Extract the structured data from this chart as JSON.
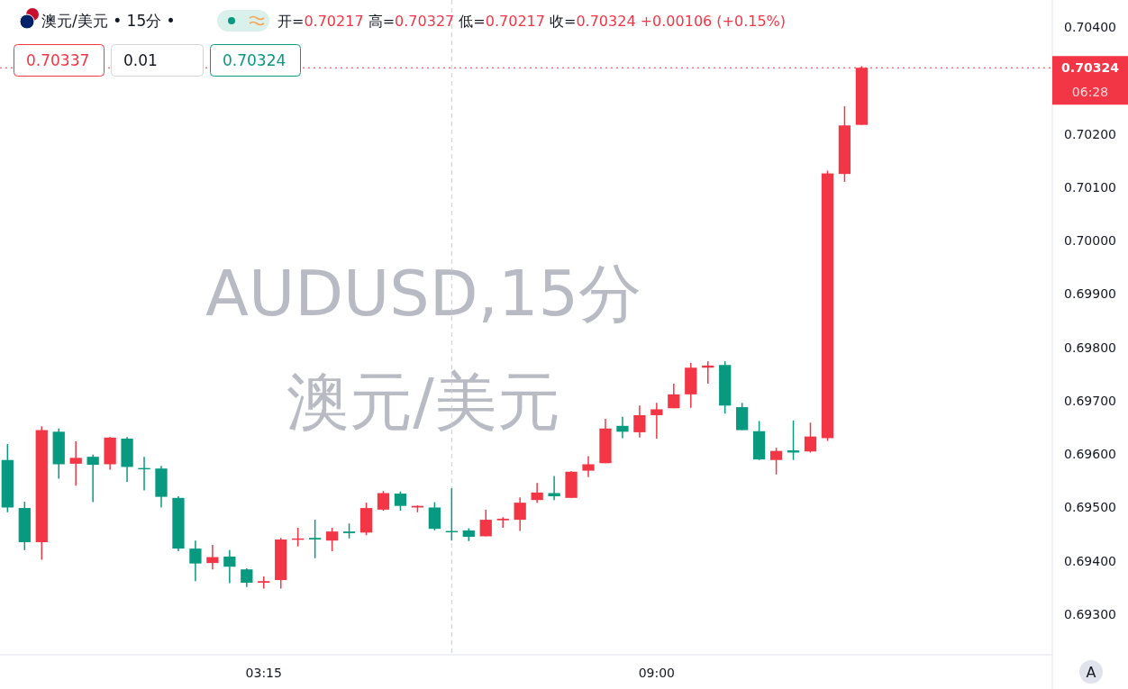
{
  "chart_data": {
    "type": "candlestick",
    "title": "澳元/美元 • 15分 •",
    "subtitle": "开=0.70217 高=0.70327 低=0.70217 收=0.70324 +0.00106 (+0.15%)",
    "annotations": [
      "AUDUSD,15分",
      "澳元/美元",
      "0.70337",
      "0.01",
      "0.70324",
      "06:28",
      "A"
    ],
    "x": [
      -0.5,
      -0.25,
      0,
      0.25,
      0.5,
      0.75,
      1,
      1.25,
      1.5,
      1.75,
      2,
      2.25,
      2.5,
      2.75,
      3,
      3.25,
      3.5,
      3.75,
      4,
      4.25,
      4.5,
      4.75,
      5,
      5.25,
      5.5,
      5.75,
      6,
      6.25,
      6.5,
      6.75,
      7,
      7.25,
      7.5,
      7.75,
      8,
      8.25,
      8.5,
      8.75,
      9,
      9.25,
      9.5,
      9.75,
      10,
      10.25,
      10.5,
      10.75,
      11,
      11.25,
      11.5,
      11.75,
      12
    ],
    "ohlc": [
      [
        0.69589,
        0.69619,
        0.69491,
        0.695
      ],
      [
        0.69499,
        0.69511,
        0.6942,
        0.69435
      ],
      [
        0.69435,
        0.69652,
        0.69402,
        0.69645
      ],
      [
        0.69642,
        0.69648,
        0.69554,
        0.69581
      ],
      [
        0.69582,
        0.69624,
        0.69541,
        0.69593
      ],
      [
        0.69595,
        0.69599,
        0.6951,
        0.6958
      ],
      [
        0.69581,
        0.69632,
        0.69571,
        0.69631
      ],
      [
        0.69629,
        0.69632,
        0.69548,
        0.69576
      ],
      [
        0.69574,
        0.69595,
        0.69532,
        0.69573
      ],
      [
        0.69573,
        0.69578,
        0.695,
        0.6952
      ],
      [
        0.69518,
        0.69521,
        0.69418,
        0.69423
      ],
      [
        0.69423,
        0.69438,
        0.69362,
        0.69395
      ],
      [
        0.69396,
        0.6943,
        0.69384,
        0.69407
      ],
      [
        0.69408,
        0.6942,
        0.69358,
        0.69389
      ],
      [
        0.69384,
        0.69386,
        0.69351,
        0.69359
      ],
      [
        0.69359,
        0.69371,
        0.69348,
        0.69362
      ],
      [
        0.69364,
        0.69443,
        0.69348,
        0.6944
      ],
      [
        0.6944,
        0.69462,
        0.69427,
        0.69442
      ],
      [
        0.69443,
        0.69477,
        0.69405,
        0.6944
      ],
      [
        0.69438,
        0.69462,
        0.69418,
        0.69455
      ],
      [
        0.69455,
        0.6947,
        0.69442,
        0.69452
      ],
      [
        0.69453,
        0.69509,
        0.69448,
        0.69499
      ],
      [
        0.69496,
        0.69531,
        0.69494,
        0.69527
      ],
      [
        0.69526,
        0.6953,
        0.69494,
        0.69503
      ],
      [
        0.695,
        0.69504,
        0.69491,
        0.69503
      ],
      [
        0.695,
        0.6951,
        0.69457,
        0.6946
      ],
      [
        0.69456,
        0.69536,
        0.69438,
        0.69454
      ],
      [
        0.69457,
        0.69461,
        0.69437,
        0.69445
      ],
      [
        0.69446,
        0.69496,
        0.69446,
        0.69477
      ],
      [
        0.69476,
        0.69482,
        0.69462,
        0.69479
      ],
      [
        0.69477,
        0.69519,
        0.69456,
        0.69509
      ],
      [
        0.69514,
        0.69546,
        0.69509,
        0.69528
      ],
      [
        0.69527,
        0.69559,
        0.69514,
        0.69521
      ],
      [
        0.69518,
        0.69568,
        0.69518,
        0.69567
      ],
      [
        0.69569,
        0.69596,
        0.69557,
        0.69581
      ],
      [
        0.69583,
        0.69666,
        0.69583,
        0.69648
      ],
      [
        0.69653,
        0.6967,
        0.6963,
        0.69642
      ],
      [
        0.69641,
        0.69691,
        0.69631,
        0.69673
      ],
      [
        0.69673,
        0.69696,
        0.69629,
        0.69684
      ],
      [
        0.69686,
        0.69732,
        0.69686,
        0.69712
      ],
      [
        0.69712,
        0.69771,
        0.69687,
        0.69762
      ],
      [
        0.69762,
        0.69774,
        0.69732,
        0.69766
      ],
      [
        0.69767,
        0.69774,
        0.69676,
        0.69691
      ],
      [
        0.69688,
        0.69696,
        0.69645,
        0.69645
      ],
      [
        0.69643,
        0.69662,
        0.69589,
        0.6959
      ],
      [
        0.69589,
        0.69612,
        0.69562,
        0.69606
      ],
      [
        0.69607,
        0.69663,
        0.69589,
        0.69603
      ],
      [
        0.69605,
        0.69659,
        0.69603,
        0.69633
      ],
      [
        0.6963,
        0.70131,
        0.69625,
        0.70126
      ],
      [
        0.70125,
        0.70252,
        0.7011,
        0.70216
      ],
      [
        0.70217,
        0.70327,
        0.70217,
        0.70324
      ]
    ],
    "colors": [
      "#089981",
      "#089981",
      "#f23645",
      "#089981",
      "#f23645",
      "#089981",
      "#f23645",
      "#089981",
      "#089981",
      "#089981",
      "#089981",
      "#089981",
      "#f23645",
      "#089981",
      "#089981",
      "#f23645",
      "#f23645",
      "#f23645",
      "#089981",
      "#f23645",
      "#089981",
      "#f23645",
      "#f23645",
      "#089981",
      "#f23645",
      "#089981",
      "#089981",
      "#089981",
      "#f23645",
      "#f23645",
      "#f23645",
      "#f23645",
      "#089981",
      "#f23645",
      "#f23645",
      "#f23645",
      "#089981",
      "#f23645",
      "#f23645",
      "#f23645",
      "#f23645",
      "#f23645",
      "#089981",
      "#089981",
      "#089981",
      "#f23645",
      "#089981",
      "#f23645",
      "#f23645",
      "#f23645",
      "#f23645"
    ],
    "xlim": [
      -0.61,
      14.79
    ],
    "xticks": [
      {
        "value": 3.25,
        "label": "03:15"
      },
      {
        "value": 9,
        "label": "09:00"
      }
    ],
    "ylim": [
      0.69224,
      0.70451
    ],
    "yticks": [
      {
        "value": 0.693,
        "label": "0.69300"
      },
      {
        "value": 0.694,
        "label": "0.69400"
      },
      {
        "value": 0.695,
        "label": "0.69500"
      },
      {
        "value": 0.696,
        "label": "0.69600"
      },
      {
        "value": 0.697,
        "label": "0.69700"
      },
      {
        "value": 0.698,
        "label": "0.69800"
      },
      {
        "value": 0.699,
        "label": "0.69900"
      },
      {
        "value": 0.7,
        "label": "0.70000"
      },
      {
        "value": 0.701,
        "label": "0.70100"
      },
      {
        "value": 0.702,
        "label": "0.70200"
      },
      {
        "value": 0.704,
        "label": "0.70400"
      }
    ],
    "ref_lines": [
      {
        "axis": "y",
        "value": 0.70324,
        "label": "0.70324",
        "color": "#f23645",
        "line_style": "dotted"
      },
      {
        "axis": "x",
        "value": 6,
        "color": "#c9ccd4",
        "line_style": "dashed"
      }
    ]
  }
}
